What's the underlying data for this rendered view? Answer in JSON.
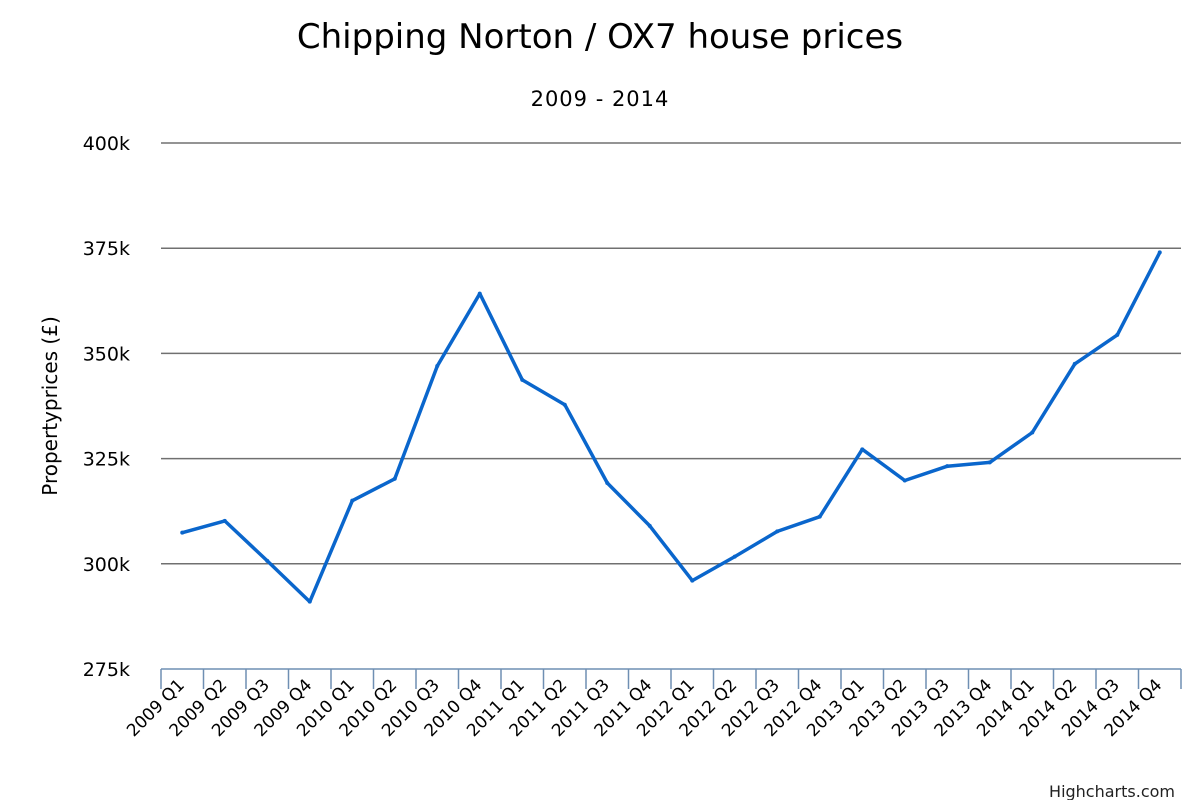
{
  "chart_data": {
    "type": "line",
    "title": "Chipping Norton / OX7 house prices",
    "subtitle": "2009 - 2014",
    "ylabel": "Propertyprices (£)",
    "xlabel": "",
    "ylim": [
      275000,
      400000
    ],
    "yticks": [
      275000,
      300000,
      325000,
      350000,
      375000,
      400000
    ],
    "ytick_labels": [
      "275k",
      "300k",
      "325k",
      "350k",
      "375k",
      "400k"
    ],
    "categories": [
      "2009 Q1",
      "2009 Q2",
      "2009 Q3",
      "2009 Q4",
      "2010 Q1",
      "2010 Q2",
      "2010 Q3",
      "2010 Q4",
      "2011 Q1",
      "2011 Q2",
      "2011 Q3",
      "2011 Q4",
      "2012 Q1",
      "2012 Q2",
      "2012 Q3",
      "2012 Q4",
      "2013 Q1",
      "2013 Q2",
      "2013 Q3",
      "2013 Q4",
      "2014 Q1",
      "2014 Q2",
      "2014 Q3",
      "2014 Q4"
    ],
    "series": [
      {
        "color": "#0a66cc",
        "values": [
          307400,
          310200,
          300700,
          291000,
          315000,
          320200,
          347000,
          364200,
          343700,
          337800,
          319200,
          309000,
          296000,
          301700,
          307700,
          311200,
          327200,
          319800,
          323200,
          324100,
          331200,
          347500,
          354400,
          374000
        ]
      }
    ],
    "grid": true,
    "legend": "none"
  },
  "credit": "Highcharts.com"
}
